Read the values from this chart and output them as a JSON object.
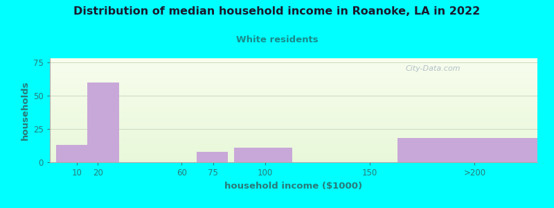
{
  "title": "Distribution of median household income in Roanoke, LA in 2022",
  "subtitle": "White residents",
  "xlabel": "household income ($1000)",
  "ylabel": "households",
  "background_color": "#00FFFF",
  "bar_color": "#c8a8d8",
  "title_color": "#1a1a2e",
  "subtitle_color": "#1a8a8a",
  "axis_label_color": "#2a7a7a",
  "tick_color": "#2a7a7a",
  "grid_color": "#c8d8c0",
  "bars": [
    {
      "label": "10",
      "height": 13,
      "x_left": 0,
      "x_right": 15
    },
    {
      "label": "20",
      "height": 60,
      "x_left": 15,
      "x_right": 30
    },
    {
      "label": "75",
      "height": 8,
      "x_left": 67,
      "x_right": 82
    },
    {
      "label": "100",
      "height": 11,
      "x_left": 85,
      "x_right": 113
    },
    {
      "label": ">200",
      "height": 18,
      "x_left": 163,
      "x_right": 230
    }
  ],
  "xtick_positions": [
    10,
    20,
    60,
    75,
    100,
    150,
    200
  ],
  "xtick_labels": [
    "10",
    "20",
    "60",
    "75",
    "100",
    "150",
    ">200"
  ],
  "ytick_positions": [
    0,
    25,
    50,
    75
  ],
  "xlim": [
    -3,
    230
  ],
  "ylim": [
    0,
    78
  ],
  "watermark": "City-Data.com"
}
